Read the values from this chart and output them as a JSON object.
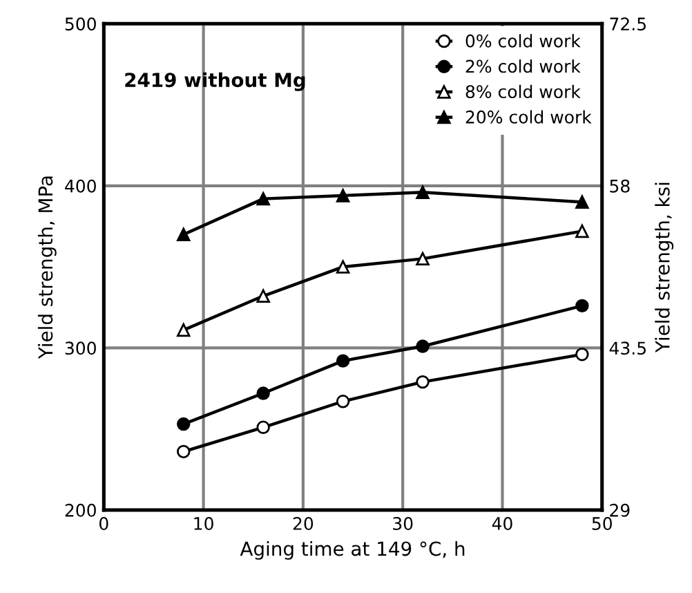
{
  "chart_data": {
    "type": "line",
    "xlabel": "Aging time at 149 °C, h",
    "ylabel": "Yield strength, MPa",
    "y2label": "Yield strength, ksi",
    "annotations": [
      "2419 without Mg"
    ],
    "x": [
      8,
      16,
      24,
      32,
      48
    ],
    "series": [
      {
        "name": "0% cold work",
        "color": "#000000",
        "marker": "circle",
        "values": [
          236,
          251,
          267,
          279,
          296
        ]
      },
      {
        "name": "2% cold work",
        "color": "#000000",
        "marker": "circle",
        "values": [
          253,
          272,
          292,
          301,
          326
        ]
      },
      {
        "name": "8% cold work",
        "color": "#000000",
        "marker": "triangle",
        "values": [
          311,
          332,
          350,
          355,
          372
        ]
      },
      {
        "name": "20% cold work",
        "color": "#000000",
        "marker": "triangle",
        "values": [
          370,
          392,
          394,
          396,
          390
        ]
      }
    ],
    "xlim": [
      0,
      50
    ],
    "xticks": [
      0,
      10,
      20,
      30,
      40,
      50
    ],
    "ylim": [
      200,
      500
    ],
    "yticks": [
      200,
      300,
      400,
      500
    ],
    "y2lim": [
      29,
      72.5
    ],
    "y2ticks": [
      29,
      43.5,
      58,
      72.5
    ],
    "grid": true,
    "legend": "top right",
    "line_style": "solid"
  }
}
